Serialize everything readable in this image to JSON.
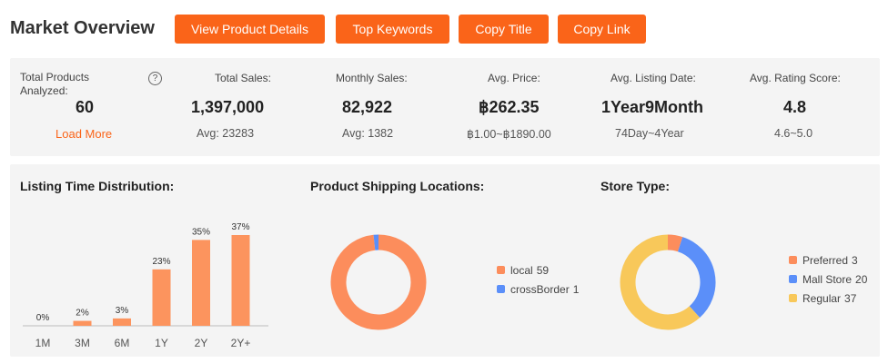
{
  "header": {
    "title": "Market Overview",
    "buttons": {
      "view_product_details": "View Product Details",
      "top_keywords": "Top Keywords",
      "copy_title": "Copy Title",
      "copy_link": "Copy Link"
    }
  },
  "stats": {
    "total_products": {
      "label": "Total Products Analyzed:",
      "value": "60",
      "help": "?",
      "load_more": "Load More"
    },
    "total_sales": {
      "label": "Total Sales:",
      "value": "1,397,000",
      "sub": "Avg: 23283"
    },
    "monthly_sales": {
      "label": "Monthly Sales:",
      "value": "82,922",
      "sub": "Avg: 1382"
    },
    "avg_price": {
      "label": "Avg. Price:",
      "value": "฿262.35",
      "sub": "฿1.00~฿1890.00"
    },
    "avg_listing_date": {
      "label": "Avg. Listing Date:",
      "value": "1Year9Month",
      "sub": "74Day~4Year"
    },
    "avg_rating": {
      "label": "Avg. Rating Score:",
      "value": "4.8",
      "sub": "4.6~5.0"
    }
  },
  "colors": {
    "accent": "#fa6419",
    "bar": "#fc945e",
    "orange": "#fc8d5c",
    "blue": "#5b8ff9",
    "yellow": "#f8c85a"
  },
  "chart_data": [
    {
      "type": "bar",
      "title": "Listing Time Distribution:",
      "categories": [
        "1M",
        "3M",
        "6M",
        "1Y",
        "2Y",
        "2Y+"
      ],
      "values": [
        0,
        2,
        3,
        23,
        35,
        37
      ],
      "data_labels": [
        "0%",
        "2%",
        "3%",
        "23%",
        "35%",
        "37%"
      ],
      "ylim": [
        0,
        37
      ]
    },
    {
      "type": "pie",
      "title": "Product Shipping Locations:",
      "slices": [
        {
          "name": "local",
          "value": 59,
          "color": "#fc8d5c"
        },
        {
          "name": "crossBorder",
          "value": 1,
          "color": "#5b8ff9"
        }
      ]
    },
    {
      "type": "pie",
      "title": "Store Type:",
      "slices": [
        {
          "name": "Preferred",
          "value": 3,
          "color": "#fc8d5c"
        },
        {
          "name": "Mall Store",
          "value": 20,
          "color": "#5b8ff9"
        },
        {
          "name": "Regular",
          "value": 37,
          "color": "#f8c85a"
        }
      ]
    }
  ]
}
